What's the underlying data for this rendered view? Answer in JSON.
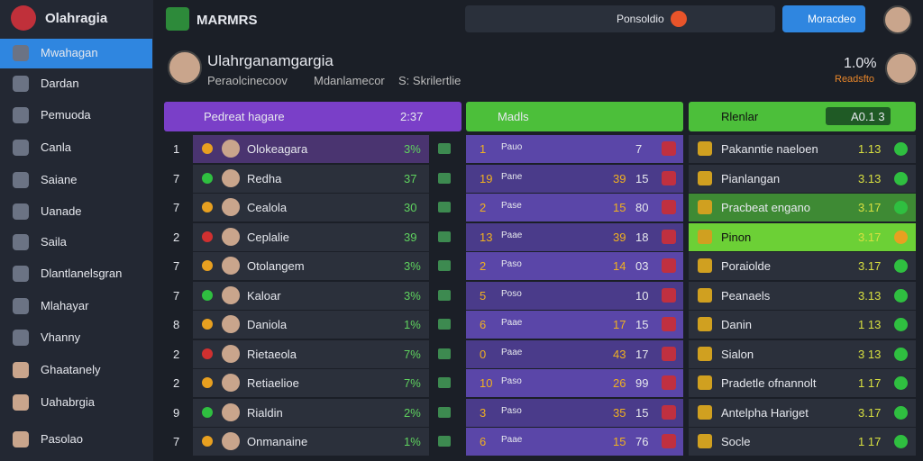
{
  "sidebar": {
    "brand": "Olahragia",
    "items": [
      "Mwahagan",
      "Dardan",
      "Pemuoda",
      "Canla",
      "Saiane",
      "Uanade",
      "Saila",
      "Dlantlanelsgran",
      "Mlahayar",
      "Vhanny",
      "Ghaatanely",
      "Uahabrgia",
      "Pasolao"
    ]
  },
  "topbar": {
    "brand": "MARMRS",
    "search": "Ponsoldio",
    "button": "Moracdeo"
  },
  "profile": {
    "name": "Ulahrganamgargia",
    "sub1": "Peraolcinecoov",
    "sub2": "Mdanlamecor",
    "sub3": "S: Skrilertlie",
    "stat": "1.0%",
    "stat_label": "Readsfto"
  },
  "col1": {
    "title": "Pedreat hagare",
    "value": "2:37",
    "rows": [
      [
        "1",
        "Olokeagara",
        "3%"
      ],
      [
        "7",
        "Redha",
        "37"
      ],
      [
        "7",
        "Cealola",
        "30"
      ],
      [
        "2",
        "Ceplalie",
        "39"
      ],
      [
        "7",
        "Otolangem",
        "3%"
      ],
      [
        "7",
        "Kaloar",
        "3%"
      ],
      [
        "8",
        "Daniola",
        "1%"
      ],
      [
        "2",
        "Rietaeola",
        "7%"
      ],
      [
        "2",
        "Retiaelioe",
        "7%"
      ],
      [
        "9",
        "Rialdin",
        "2%"
      ],
      [
        "7",
        "Onmanaine",
        "1%"
      ]
    ]
  },
  "col2": {
    "title": "Madls",
    "rows": [
      [
        "1",
        "Pauo",
        "7"
      ],
      [
        "19",
        "Pane",
        "39",
        "15"
      ],
      [
        "2",
        "Pase",
        "15",
        "80"
      ],
      [
        "13",
        "Paae",
        "39",
        "18"
      ],
      [
        "2",
        "Paso",
        "14",
        "03"
      ],
      [
        "5",
        "Poso",
        "10"
      ],
      [
        "6",
        "Paae",
        "17",
        "15"
      ],
      [
        "0",
        "Paae",
        "43",
        "17"
      ],
      [
        "10",
        "Paso",
        "26",
        "99"
      ],
      [
        "3",
        "Paso",
        "35",
        "15"
      ],
      [
        "6",
        "Paae",
        "15",
        "76"
      ]
    ]
  },
  "col3": {
    "title": "Rlenlar",
    "badge": "A0.1 3",
    "rows": [
      [
        "Pakanntie naeloen",
        "1.13"
      ],
      [
        "Pianlangan",
        "3.13"
      ],
      [
        "Pracbeat engano",
        "3.17"
      ],
      [
        "Pinon",
        "3.17"
      ],
      [
        "Poraiolde",
        "3.17"
      ],
      [
        "Peanaels",
        "3.13"
      ],
      [
        "Danin",
        "1 13"
      ],
      [
        "Sialon",
        "3 13"
      ],
      [
        "Pradetle ofnannolt",
        "1 17"
      ],
      [
        "Antelpha Hariget",
        "3.17"
      ],
      [
        "Socle",
        "1 17"
      ]
    ]
  }
}
